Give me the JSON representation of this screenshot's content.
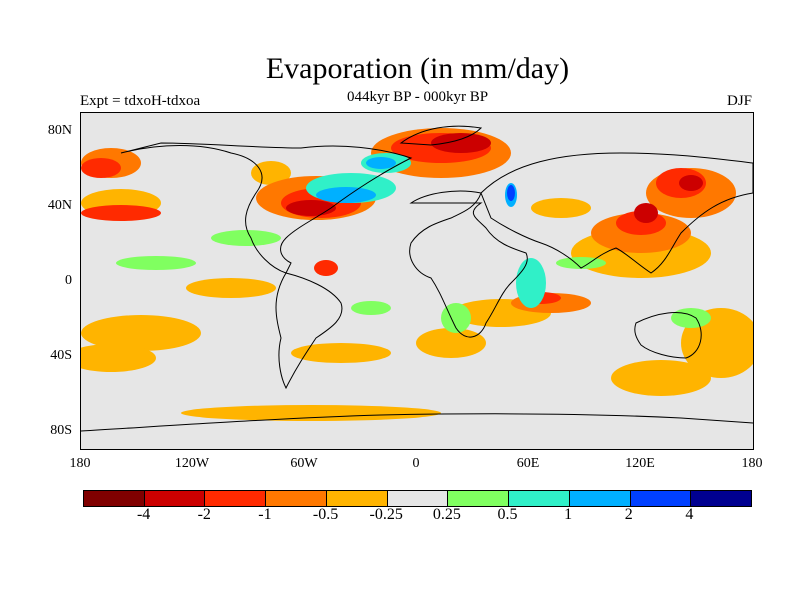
{
  "title": "Evaporation (in mm/day)",
  "subtitle": "044kyr BP - 000kyr BP",
  "experiment_label": "Expt = tdxoH-tdxoa",
  "season_label": "DJF",
  "axes": {
    "y_labels": [
      "80N",
      "40N",
      "0",
      "40S",
      "80S"
    ],
    "x_labels": [
      "180",
      "120W",
      "60W",
      "0",
      "60E",
      "120E",
      "180"
    ]
  },
  "colorbar": {
    "colors": [
      "#800000",
      "#cc0000",
      "#ff2a00",
      "#ff7800",
      "#ffb400",
      "#e6e6e6",
      "#80ff60",
      "#30f0c8",
      "#00b0ff",
      "#0040ff",
      "#000090"
    ],
    "labels": [
      "-4",
      "-2",
      "-1",
      "-0.5",
      "-0.25",
      "0.25",
      "0.5",
      "1",
      "2",
      "4"
    ]
  }
}
